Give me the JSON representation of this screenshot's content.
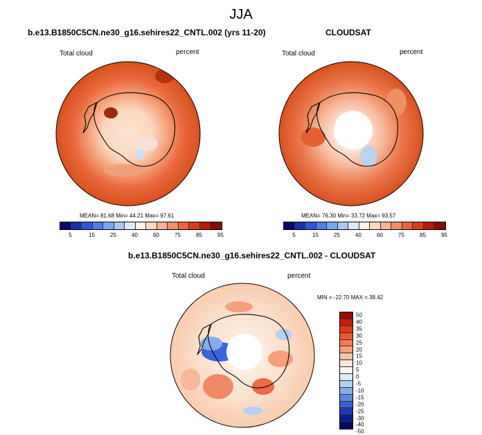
{
  "main_title": "JJA",
  "panels": [
    {
      "title": "b.e13.B1850C5CN.ne30_g16.sehires22_CNTL.002 (yrs 11-20)",
      "left_label": "Total cloud",
      "right_label": "percent",
      "stats": "MEAN=  81.68  Min=  44.21  Max=  97.61"
    },
    {
      "title": "CLOUDSAT",
      "left_label": "Total cloud",
      "right_label": "percent",
      "stats": "MEAN=  76.30  Min=  33.72  Max=  93.57"
    },
    {
      "title": "b.e13.B1850C5CN.ne30_g16.sehires22_CNTL.002 - CLOUDSAT",
      "left_label": "Total cloud",
      "right_label": "percent",
      "stats": "MIN = -22.70  MAX =  38.42"
    }
  ],
  "colorbar_abs": {
    "colors": [
      "#08046b",
      "#1a2fb5",
      "#2f55d9",
      "#4d7fe6",
      "#7aa6f0",
      "#a9c8f4",
      "#dce9f7",
      "#fdf3ea",
      "#fbd8c0",
      "#f8b394",
      "#f48d69",
      "#ef6240",
      "#dd3b1b",
      "#b71c0c",
      "#8a0b04"
    ],
    "labels": [
      "5",
      "15",
      "25",
      "40",
      "60",
      "75",
      "85",
      "95"
    ]
  },
  "colorbar_diff": {
    "colors": [
      "#9a0a04",
      "#c41c0a",
      "#de3a14",
      "#ec5a30",
      "#f47c52",
      "#f7a07b",
      "#f8c3a6",
      "#fbe5d6",
      "#fdf6ef",
      "#dfeaf8",
      "#b6d0f2",
      "#86adea",
      "#5a88e0",
      "#3a60d6",
      "#2038b6",
      "#0b1a8c",
      "#070a5c"
    ],
    "labels": [
      "50",
      "40",
      "35",
      "30",
      "25",
      "20",
      "15",
      "10",
      "5",
      "0",
      "-5",
      "-10",
      "-15",
      "-20",
      "-25",
      "-30",
      "-40",
      "-50"
    ]
  }
}
